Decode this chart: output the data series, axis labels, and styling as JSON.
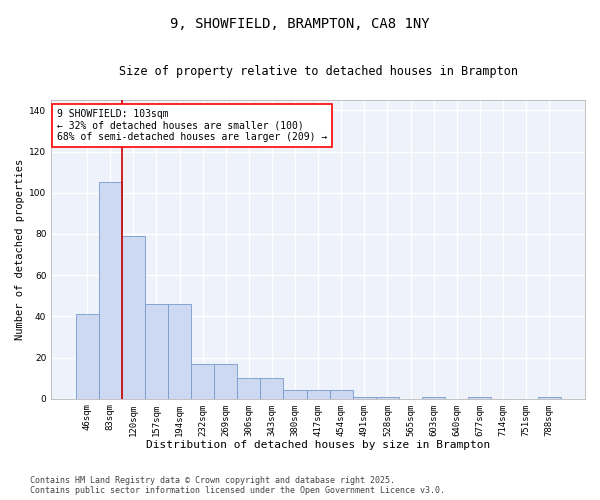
{
  "title": "9, SHOWFIELD, BRAMPTON, CA8 1NY",
  "subtitle": "Size of property relative to detached houses in Brampton",
  "xlabel": "Distribution of detached houses by size in Brampton",
  "ylabel": "Number of detached properties",
  "categories": [
    "46sqm",
    "83sqm",
    "120sqm",
    "157sqm",
    "194sqm",
    "232sqm",
    "269sqm",
    "306sqm",
    "343sqm",
    "380sqm",
    "417sqm",
    "454sqm",
    "491sqm",
    "528sqm",
    "565sqm",
    "603sqm",
    "640sqm",
    "677sqm",
    "714sqm",
    "751sqm",
    "788sqm"
  ],
  "values": [
    41,
    105,
    79,
    46,
    46,
    17,
    17,
    10,
    10,
    4,
    4,
    4,
    1,
    1,
    0,
    1,
    0,
    1,
    0,
    0,
    1
  ],
  "bar_color": "#ccd9f0",
  "bar_edgecolor": "#7799cc",
  "vline_x": 1.5,
  "vline_color": "#cc0000",
  "annotation_text": "9 SHOWFIELD: 103sqm\n← 32% of detached houses are smaller (100)\n68% of semi-detached houses are larger (209) →",
  "ylim": [
    0,
    145
  ],
  "yticks": [
    0,
    20,
    40,
    60,
    80,
    100,
    120,
    140
  ],
  "background_color": "#eef2fb",
  "grid_color": "#ffffff",
  "footer_line1": "Contains HM Land Registry data © Crown copyright and database right 2025.",
  "footer_line2": "Contains public sector information licensed under the Open Government Licence v3.0.",
  "title_fontsize": 10,
  "subtitle_fontsize": 8.5,
  "xlabel_fontsize": 8,
  "ylabel_fontsize": 7.5,
  "tick_fontsize": 6.5,
  "annotation_fontsize": 7,
  "footer_fontsize": 6
}
